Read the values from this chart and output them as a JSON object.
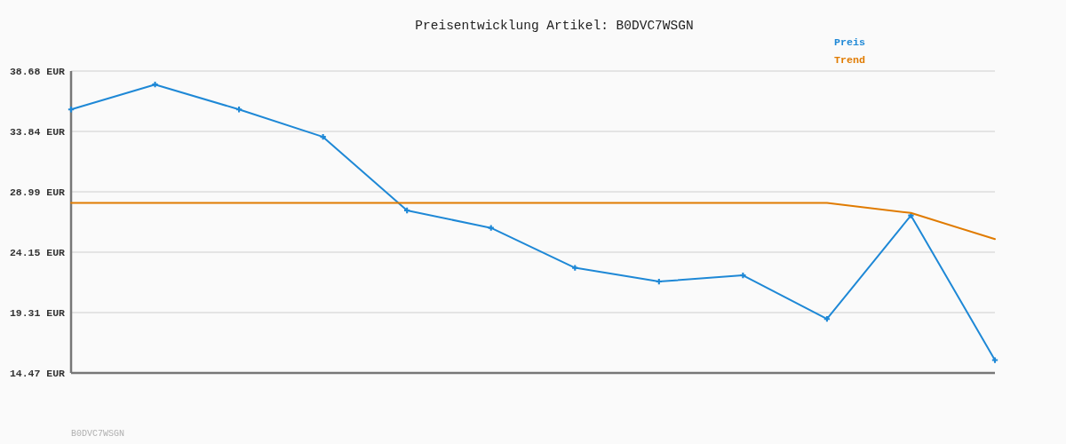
{
  "chart_data": {
    "type": "line",
    "title": "Preisentwicklung Artikel: B0DVC7WSGN",
    "categories": [
      null,
      null,
      null,
      null,
      null,
      null,
      null,
      null,
      null,
      null,
      null,
      null
    ],
    "series": [
      {
        "name": "Preis",
        "color": "#1e88d6",
        "marker": "cross",
        "values": [
          35.6,
          37.6,
          35.6,
          33.4,
          27.5,
          26.1,
          22.9,
          21.8,
          22.3,
          18.8,
          27.1,
          15.5
        ]
      },
      {
        "name": "Trend",
        "color": "#e07b00",
        "values": [
          28.1,
          28.1,
          28.1,
          28.1,
          28.1,
          28.1,
          28.1,
          28.1,
          28.1,
          28.1,
          27.3,
          25.2
        ]
      }
    ],
    "ylim": [
      14.47,
      38.68
    ],
    "yticks": [
      {
        "value": 14.47,
        "label": "14.47 EUR"
      },
      {
        "value": 19.31,
        "label": "19.31 EUR"
      },
      {
        "value": 24.15,
        "label": "24.15 EUR"
      },
      {
        "value": 28.99,
        "label": "28.99 EUR"
      },
      {
        "value": 33.84,
        "label": "33.84 EUR"
      },
      {
        "value": 38.68,
        "label": "38.68 EUR"
      }
    ],
    "tick_labels": "y",
    "grid": "y",
    "legend": "top right",
    "annotations": [
      "B0DVC7WSGN"
    ]
  }
}
